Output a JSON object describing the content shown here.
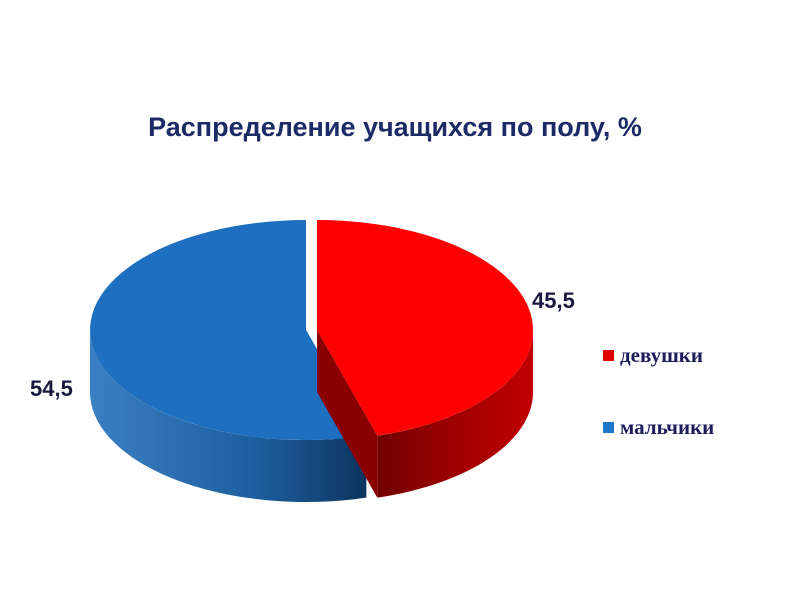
{
  "chart_data": {
    "type": "pie",
    "title": "Распределение учащихся по полу, %",
    "categories": [
      "девушки",
      "мальчики"
    ],
    "values": [
      45.5,
      54.5
    ],
    "data_labels": [
      "45,5",
      "54,5"
    ],
    "colors": [
      "#ff0000",
      "#1e6fbf"
    ],
    "style": "3d-exploded",
    "legend_position": "right"
  }
}
